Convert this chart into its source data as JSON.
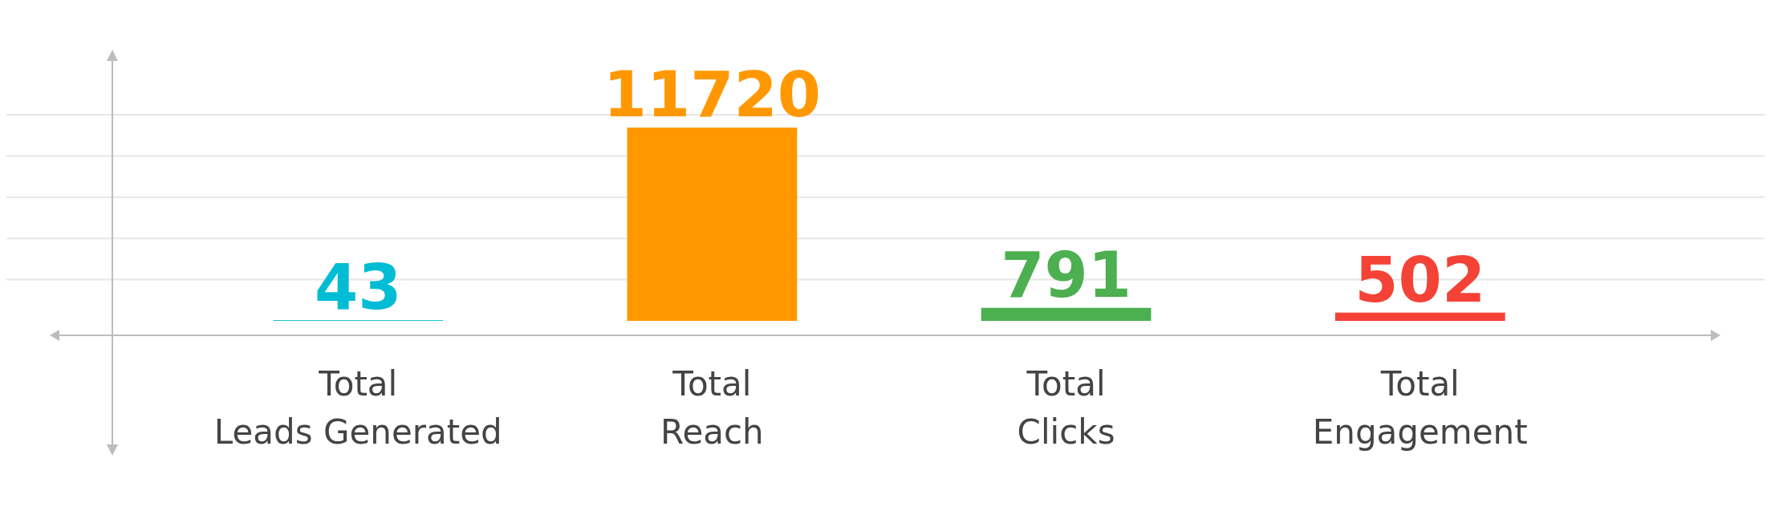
{
  "chart_data": {
    "type": "bar",
    "categories": [
      "Total\nLeads Generated",
      "Total\nReach",
      "Total\nClicks",
      "Total\nEngagement"
    ],
    "values": [
      43,
      11720,
      791,
      502
    ],
    "colors": [
      "#00bcd4",
      "#ff9800",
      "#4caf50",
      "#f44336"
    ],
    "ylim": [
      0,
      12500
    ],
    "yticks": [
      {
        "value": 2500,
        "label": null
      },
      {
        "value": 5000,
        "label": null
      },
      {
        "value": 7500,
        "label": null
      },
      {
        "value": 10000,
        "label": null
      },
      {
        "value": 12500,
        "label": null
      }
    ],
    "grid": true,
    "data_labels": true
  }
}
